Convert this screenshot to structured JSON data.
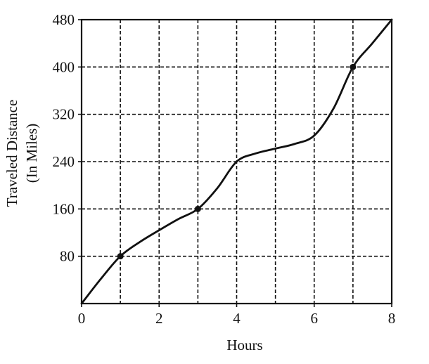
{
  "chart_data": {
    "type": "line",
    "title": "",
    "xlabel": "Hours",
    "ylabel_line1": "Traveled Distance",
    "ylabel_line2": "(In Miles)",
    "xlim": [
      0,
      8
    ],
    "ylim": [
      0,
      480
    ],
    "x_tick_values": [
      0,
      2,
      4,
      6,
      8
    ],
    "x_tick_labels": [
      "0",
      "2",
      "4",
      "6",
      "8"
    ],
    "y_tick_values": [
      80,
      160,
      240,
      320,
      400,
      480
    ],
    "y_tick_labels": [
      "80",
      "160",
      "240",
      "320",
      "400",
      "480"
    ],
    "grid": true,
    "grid_style": "dashed",
    "grid_x_values": [
      1,
      2,
      3,
      4,
      5,
      6,
      7
    ],
    "grid_y_values": [
      80,
      160,
      240,
      320,
      400
    ],
    "series": [
      {
        "x": [
          0,
          0.5,
          1,
          1.5,
          2,
          2.5,
          3,
          3.5,
          4,
          4.5,
          5,
          5.5,
          6,
          6.5,
          7,
          7.5,
          8
        ],
        "y": [
          0,
          42,
          80,
          104,
          124,
          143,
          160,
          195,
          240,
          254,
          262,
          270,
          284,
          330,
          400,
          440,
          480
        ]
      }
    ],
    "highlight_points": [
      {
        "x": 1,
        "y": 80
      },
      {
        "x": 3,
        "y": 160
      },
      {
        "x": 7,
        "y": 400
      }
    ],
    "colors": {
      "line": "#111111",
      "grid": "#111111",
      "frame": "#111111"
    }
  }
}
